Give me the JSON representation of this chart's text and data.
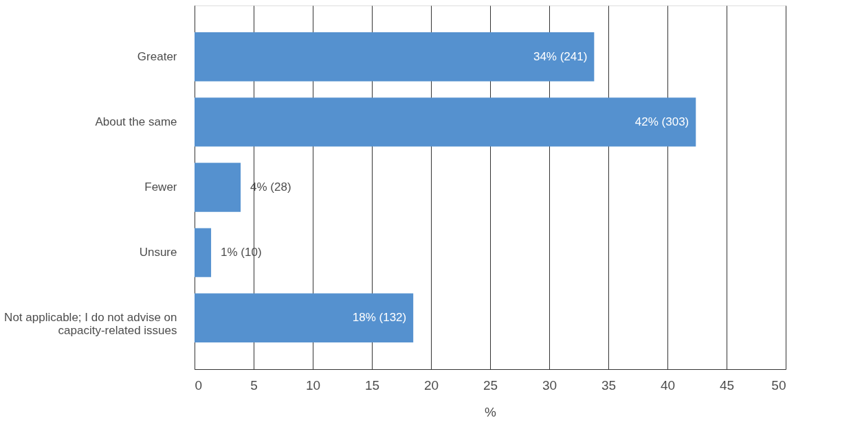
{
  "chart_data": {
    "type": "bar",
    "orientation": "horizontal",
    "xlabel": "%",
    "categories": [
      "Greater",
      "About the same",
      "Fewer",
      "Unsure",
      "Not applicable; I do not advise on\ncapacity-related issues"
    ],
    "values": [
      33.8,
      42.4,
      3.9,
      1.4,
      18.5
    ],
    "value_labels": [
      "34% (241)",
      "42% (303)",
      "4% (28)",
      "1% (10)",
      "18% (132)"
    ],
    "color": "#5591cf",
    "xlim": [
      0,
      50
    ],
    "xticks": [
      0,
      5,
      10,
      15,
      20,
      25,
      30,
      35,
      40,
      45,
      50
    ],
    "grid": "x"
  }
}
